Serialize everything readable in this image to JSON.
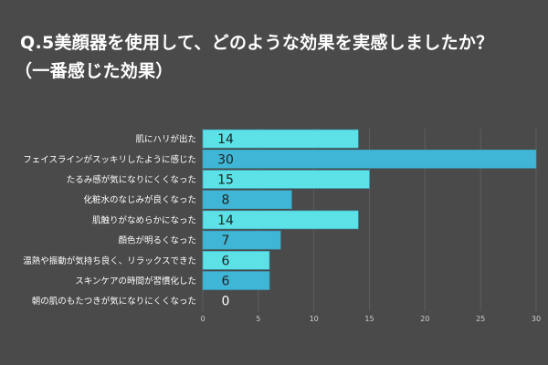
{
  "chart_data": {
    "type": "bar",
    "orientation": "horizontal",
    "title_lines": [
      "Q.5美顔器を使用して、どのような効果を実感しましたか？",
      "（一番感じた効果）"
    ],
    "categories": [
      "肌にハリが出た",
      "フェイスラインがスッキリしたように感じた",
      "たるみ感が気になりにくくなった",
      "化粧水のなじみが良くなった",
      "肌触りがなめらかになった",
      "顔色が明るくなった",
      "温熱や振動が気持ち良く、リラックスできた",
      "スキンケアの時間が習慣化した",
      "朝の肌のもたつきが気になりにくくなった"
    ],
    "values": [
      14,
      30,
      15,
      8,
      14,
      7,
      6,
      6,
      0
    ],
    "xlim": [
      0,
      30
    ],
    "xticks": [
      0,
      5,
      10,
      15,
      20,
      25,
      30
    ],
    "grid": true,
    "legend": "none",
    "colors": [
      "#5ce1e6",
      "#3fb6d6"
    ],
    "background": "#4a4a4a"
  }
}
